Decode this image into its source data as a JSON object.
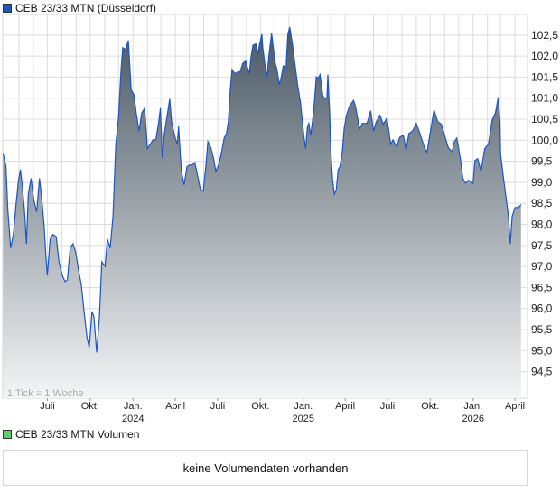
{
  "legend": {
    "price_label": "CEB 23/33 MTN (Düsseldorf)",
    "price_color": "#1a56c8",
    "volume_label": "CEB 23/33 MTN Volumen",
    "volume_color": "#5fcf6a"
  },
  "tick_note": "1 Tick = 1 Woche",
  "volume": {
    "message": "keine Volumendaten vorhanden"
  },
  "chart_data": {
    "type": "area",
    "grid": true,
    "line_color": "#1a56c8",
    "fill_gradient": [
      "#44535f",
      "#f4f5f6"
    ],
    "xlim": [
      "2023-03-27",
      "2026-04-28"
    ],
    "ylim": [
      93.87,
      102.99
    ],
    "yticks": [
      94.5,
      95.0,
      95.5,
      96.0,
      96.5,
      97.0,
      97.5,
      98.0,
      98.5,
      99.0,
      99.5,
      100.0,
      100.5,
      101.0,
      101.5,
      102.0,
      102.5
    ],
    "ytick_labels": [
      "94,5",
      "95,0",
      "95,5",
      "96,0",
      "96,5",
      "97,0",
      "97,5",
      "98,0",
      "98,5",
      "99,0",
      "99,5",
      "100,0",
      "100,5",
      "101,0",
      "101,5",
      "102,0",
      "102,5"
    ],
    "xticks": [
      {
        "date": "2023-07-01",
        "label": "Juli",
        "year": ""
      },
      {
        "date": "2023-10-01",
        "label": "Okt.",
        "year": ""
      },
      {
        "date": "2024-01-01",
        "label": "Jan.",
        "year": "2024"
      },
      {
        "date": "2024-04-01",
        "label": "April",
        "year": ""
      },
      {
        "date": "2024-07-01",
        "label": "Juli",
        "year": ""
      },
      {
        "date": "2024-10-01",
        "label": "Okt.",
        "year": ""
      },
      {
        "date": "2025-01-01",
        "label": "Jan.",
        "year": "2025"
      },
      {
        "date": "2025-04-01",
        "label": "April",
        "year": ""
      },
      {
        "date": "2025-07-01",
        "label": "Juli",
        "year": ""
      },
      {
        "date": "2025-10-01",
        "label": "Okt.",
        "year": ""
      },
      {
        "date": "2026-01-01",
        "label": "Jan.",
        "year": "2026"
      },
      {
        "date": "2026-04-01",
        "label": "April",
        "year": ""
      }
    ],
    "series": [
      {
        "x": [
          "2023-03-28",
          "2023-04-03",
          "2023-04-07",
          "2023-04-13",
          "2023-04-19",
          "2023-04-25",
          "2023-04-30",
          "2023-05-04",
          "2023-05-08",
          "2023-05-13",
          "2023-05-17",
          "2023-05-21",
          "2023-05-27",
          "2023-06-02",
          "2023-06-08",
          "2023-06-14",
          "2023-06-18",
          "2023-06-24",
          "2023-06-28",
          "2023-07-01",
          "2023-07-07",
          "2023-07-13",
          "2023-07-20",
          "2023-07-26",
          "2023-08-02",
          "2023-08-08",
          "2023-08-13",
          "2023-08-19",
          "2023-08-25",
          "2023-08-31",
          "2023-09-06",
          "2023-09-12",
          "2023-09-18",
          "2023-09-24",
          "2023-09-29",
          "2023-10-05",
          "2023-10-09",
          "2023-10-15",
          "2023-10-21",
          "2023-10-26",
          "2023-11-02",
          "2023-11-07",
          "2023-11-13",
          "2023-11-19",
          "2023-11-25",
          "2023-12-01",
          "2023-12-06",
          "2023-12-10",
          "2023-12-16",
          "2023-12-22",
          "2023-12-28",
          "2024-01-03",
          "2024-01-08",
          "2024-01-14",
          "2024-01-20",
          "2024-01-26",
          "2024-02-01",
          "2024-02-07",
          "2024-02-13",
          "2024-02-19",
          "2024-02-25",
          "2024-02-29",
          "2024-03-04",
          "2024-03-08",
          "2024-03-14",
          "2024-03-20",
          "2024-03-24",
          "2024-03-30",
          "2024-04-05",
          "2024-04-08",
          "2024-04-14",
          "2024-04-20",
          "2024-04-26",
          "2024-05-01",
          "2024-05-07",
          "2024-05-13",
          "2024-05-19",
          "2024-05-25",
          "2024-05-31",
          "2024-06-06",
          "2024-06-10",
          "2024-06-16",
          "2024-06-22",
          "2024-06-27",
          "2024-07-03",
          "2024-07-09",
          "2024-07-15",
          "2024-07-20",
          "2024-07-24",
          "2024-07-28",
          "2024-08-01",
          "2024-08-07",
          "2024-08-12",
          "2024-08-18",
          "2024-08-24",
          "2024-08-30",
          "2024-09-07",
          "2024-09-11",
          "2024-09-15",
          "2024-09-21",
          "2024-09-26",
          "2024-09-28",
          "2024-10-04",
          "2024-10-06",
          "2024-10-11",
          "2024-10-15",
          "2024-10-19",
          "2024-10-25",
          "2024-10-29",
          "2024-11-02",
          "2024-11-06",
          "2024-11-10",
          "2024-11-14",
          "2024-11-19",
          "2024-11-25",
          "2024-11-29",
          "2024-12-03",
          "2024-12-09",
          "2024-12-15",
          "2024-12-20",
          "2024-12-26",
          "2025-01-02",
          "2025-01-06",
          "2025-01-10",
          "2025-01-13",
          "2025-01-17",
          "2025-01-23",
          "2025-01-29",
          "2025-02-02",
          "2025-02-06",
          "2025-02-12",
          "2025-02-17",
          "2025-02-21",
          "2025-02-23",
          "2025-02-27",
          "2025-03-01",
          "2025-03-05",
          "2025-03-09",
          "2025-03-13",
          "2025-03-17",
          "2025-03-21",
          "2025-03-26",
          "2025-03-30",
          "2025-04-04",
          "2025-04-10",
          "2025-04-19",
          "2025-04-23",
          "2025-05-02",
          "2025-05-08",
          "2025-05-18",
          "2025-05-26",
          "2025-06-01",
          "2025-06-07",
          "2025-06-15",
          "2025-06-22",
          "2025-06-30",
          "2025-07-08",
          "2025-07-13",
          "2025-07-21",
          "2025-07-27",
          "2025-08-04",
          "2025-08-10",
          "2025-08-16",
          "2025-08-24",
          "2025-09-01",
          "2025-09-10",
          "2025-09-18",
          "2025-09-24",
          "2025-09-30",
          "2025-10-09",
          "2025-10-17",
          "2025-10-25",
          "2025-11-02",
          "2025-11-09",
          "2025-11-17",
          "2025-11-21",
          "2025-11-27",
          "2025-12-01",
          "2025-12-05",
          "2025-12-10",
          "2025-12-16",
          "2025-12-22",
          "2026-01-01",
          "2026-01-05",
          "2026-01-11",
          "2026-01-18",
          "2026-01-26",
          "2026-01-30",
          "2026-02-03",
          "2026-02-11",
          "2026-02-18",
          "2026-02-24",
          "2026-02-28",
          "2026-03-01",
          "2026-03-08",
          "2026-03-18",
          "2026-03-22",
          "2026-03-26",
          "2026-04-01",
          "2026-04-08",
          "2026-04-14"
        ],
        "y": [
          99.67,
          99.39,
          98.34,
          97.44,
          97.76,
          98.51,
          99.05,
          99.3,
          98.94,
          98.3,
          97.54,
          98.72,
          99.09,
          98.57,
          98.3,
          99.09,
          98.72,
          97.97,
          97.22,
          96.79,
          97.65,
          97.76,
          97.71,
          97.11,
          96.79,
          96.64,
          96.68,
          97.44,
          97.54,
          97.33,
          96.9,
          96.57,
          95.93,
          95.33,
          95.07,
          95.93,
          95.8,
          94.96,
          95.8,
          97.11,
          97.0,
          97.65,
          97.44,
          98.19,
          99.9,
          100.55,
          101.6,
          102.2,
          102.16,
          102.37,
          101.2,
          101.08,
          100.65,
          100.22,
          100.65,
          100.76,
          99.8,
          99.9,
          100.01,
          100.01,
          100.4,
          100.76,
          99.58,
          100.12,
          100.55,
          100.98,
          100.44,
          100.12,
          99.9,
          100.33,
          99.26,
          98.94,
          99.37,
          99.41,
          99.41,
          99.47,
          99.15,
          98.83,
          98.79,
          99.43,
          99.97,
          99.84,
          99.58,
          99.26,
          99.41,
          99.69,
          100.05,
          100.16,
          100.44,
          101.19,
          101.68,
          101.58,
          101.62,
          101.62,
          101.83,
          101.88,
          101.58,
          101.99,
          102.26,
          102.29,
          102.05,
          102.22,
          102.52,
          102.2,
          101.77,
          101.51,
          101.99,
          102.54,
          102.16,
          101.83,
          101.66,
          101.34,
          101.45,
          101.77,
          101.73,
          102.52,
          102.69,
          102.26,
          101.73,
          101.3,
          100.91,
          100.12,
          99.8,
          100.33,
          100.4,
          100.12,
          100.65,
          101.51,
          101.47,
          101.56,
          101.06,
          100.98,
          101.02,
          101.56,
          100.55,
          99.8,
          99.05,
          98.72,
          98.83,
          99.3,
          99.37,
          99.73,
          100.29,
          100.59,
          100.8,
          100.95,
          100.82,
          100.27,
          100.4,
          100.4,
          100.7,
          100.22,
          100.44,
          100.59,
          100.38,
          100.53,
          99.9,
          100.01,
          99.84,
          100.07,
          100.12,
          99.76,
          100.16,
          100.22,
          100.4,
          100.12,
          99.84,
          99.71,
          100.12,
          100.72,
          100.44,
          100.38,
          100.07,
          99.82,
          99.73,
          99.95,
          100.05,
          99.8,
          99.54,
          99.09,
          98.98,
          99.05,
          98.98,
          99.52,
          99.56,
          99.26,
          99.8,
          99.86,
          99.9,
          100.48,
          100.65,
          101.02,
          100.4,
          99.69,
          99.05,
          98.19,
          97.54,
          98.19,
          98.4,
          98.4,
          98.47
        ]
      }
    ]
  }
}
